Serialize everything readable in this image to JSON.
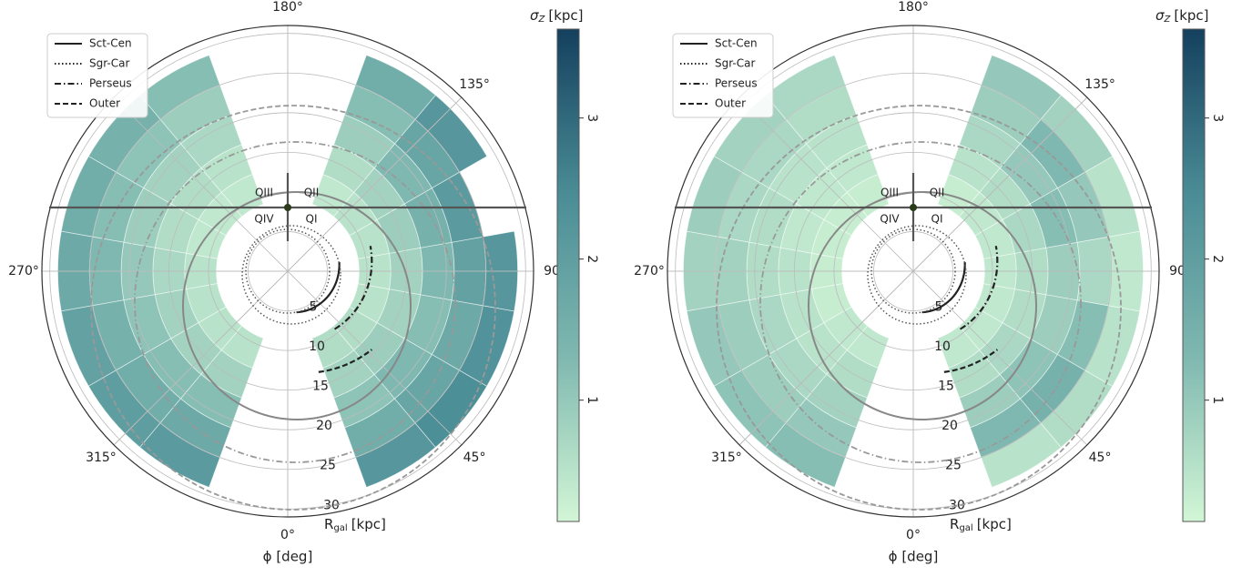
{
  "chart_data": [
    {
      "type": "polar_heatmap",
      "angle_label": "ϕ [deg]",
      "r_label": {
        "main": "R",
        "sub": "gal",
        "unit": "[kpc]"
      },
      "colorbar_label": {
        "main": "σ",
        "sub": "Z",
        "unit": "[kpc]"
      },
      "legend": [
        {
          "name": "Sct-Cen",
          "style": "solid"
        },
        {
          "name": "Sgr-Car",
          "style": "dotted"
        },
        {
          "name": "Perseus",
          "style": "dashdot"
        },
        {
          "name": "Outer",
          "style": "dashed"
        }
      ],
      "legend_loc": "upper left",
      "quadrants": [
        "QI",
        "QII",
        "QIII",
        "QIV"
      ],
      "rlim": [
        0,
        31
      ],
      "rticks": [
        5,
        10,
        15,
        20,
        25,
        30
      ],
      "angle_ticks": [
        {
          "value": 0,
          "label": "0°"
        },
        {
          "value": 45,
          "label": "45°"
        },
        90,
        {
          "value": 135,
          "label": "135°"
        },
        {
          "value": 180,
          "label": "180°"
        },
        {
          "value": 270,
          "label": "270°"
        },
        {
          "value": 315,
          "label": "315°"
        }
      ],
      "clim": [
        0.14,
        3.63
      ],
      "cticks": [
        1,
        2,
        3
      ],
      "colormap": [
        "#d2f6d6",
        "#7fb8b0",
        "#4a8c96",
        "#14405e"
      ],
      "phi_bins": [
        20,
        40,
        60,
        80,
        100,
        120,
        140,
        160,
        180,
        200,
        220,
        240,
        260,
        280,
        300,
        320,
        340
      ],
      "r_bins": [
        9,
        13,
        17,
        21,
        25,
        29
      ],
      "sigma": [
        [
          0.6,
          0.8,
          1.1,
          1.6,
          2.2
        ],
        [
          0.6,
          0.9,
          1.3,
          1.8,
          2.4
        ],
        [
          0.5,
          0.8,
          1.2,
          1.7,
          2.3
        ],
        [
          0.5,
          0.8,
          1.3,
          1.9,
          2.2
        ],
        [
          0.5,
          0.9,
          1.5,
          2.1,
          null
        ],
        [
          0.5,
          0.8,
          1.3,
          1.8,
          2.2
        ],
        [
          0.4,
          0.6,
          0.9,
          1.2,
          1.6
        ],
        [
          null,
          null,
          null,
          null,
          null
        ],
        [
          null,
          null,
          null,
          null,
          null
        ],
        [
          0.4,
          0.5,
          0.7,
          0.9,
          1.2
        ],
        [
          0.4,
          0.6,
          0.8,
          1.1,
          1.5
        ],
        [
          0.4,
          0.6,
          0.9,
          1.2,
          1.6
        ],
        [
          0.5,
          0.7,
          1.0,
          1.3,
          1.7
        ],
        [
          0.5,
          0.8,
          1.1,
          1.5,
          1.9
        ],
        [
          0.5,
          0.8,
          1.2,
          1.6,
          2.0
        ],
        [
          0.5,
          0.8,
          1.2,
          1.7,
          2.1
        ]
      ]
    },
    {
      "type": "polar_heatmap",
      "angle_label": "ϕ [deg]",
      "r_label": {
        "main": "R",
        "sub": "gal",
        "unit": "[kpc]"
      },
      "colorbar_label": {
        "main": "σ",
        "sub": "Z",
        "unit": "[kpc]"
      },
      "legend": [
        {
          "name": "Sct-Cen",
          "style": "solid"
        },
        {
          "name": "Sgr-Car",
          "style": "dotted"
        },
        {
          "name": "Perseus",
          "style": "dashdot"
        },
        {
          "name": "Outer",
          "style": "dashed"
        }
      ],
      "legend_loc": "upper left",
      "quadrants": [
        "QI",
        "QII",
        "QIII",
        "QIV"
      ],
      "rlim": [
        0,
        31
      ],
      "rticks": [
        5,
        10,
        15,
        20,
        25,
        30
      ],
      "angle_ticks": [
        {
          "value": 0,
          "label": "0°"
        },
        {
          "value": 45,
          "label": "45°"
        },
        90,
        {
          "value": 135,
          "label": "135°"
        },
        {
          "value": 180,
          "label": "180°"
        },
        {
          "value": 270,
          "label": "270°"
        },
        {
          "value": 315,
          "label": "315°"
        }
      ],
      "clim": [
        0.14,
        3.63
      ],
      "cticks": [
        1,
        2,
        3
      ],
      "colormap": [
        "#d2f6d6",
        "#7fb8b0",
        "#4a8c96",
        "#14405e"
      ],
      "phi_bins": [
        20,
        40,
        60,
        80,
        100,
        120,
        140,
        160,
        180,
        200,
        220,
        240,
        260,
        280,
        300,
        320,
        340
      ],
      "r_bins": [
        9,
        13,
        17,
        21,
        25,
        29
      ],
      "sigma": [
        [
          0.4,
          0.6,
          0.9,
          1.3,
          0.5
        ],
        [
          0.4,
          0.7,
          1.1,
          1.5,
          0.6
        ],
        [
          0.4,
          0.6,
          0.9,
          1.2,
          0.5
        ],
        [
          0.4,
          0.6,
          0.9,
          0.7,
          0.4
        ],
        [
          0.4,
          0.7,
          1.2,
          1.0,
          0.5
        ],
        [
          0.4,
          0.6,
          1.0,
          1.3,
          0.8
        ],
        [
          0.3,
          0.5,
          0.7,
          0.9,
          1.0
        ],
        [
          null,
          null,
          null,
          null,
          null
        ],
        [
          null,
          null,
          null,
          null,
          null
        ],
        [
          0.3,
          0.4,
          0.5,
          0.6,
          0.7
        ],
        [
          0.3,
          0.4,
          0.5,
          0.7,
          0.8
        ],
        [
          0.3,
          0.4,
          0.6,
          0.7,
          0.9
        ],
        [
          0.3,
          0.5,
          0.6,
          0.8,
          0.8
        ],
        [
          0.3,
          0.5,
          0.7,
          0.9,
          1.0
        ],
        [
          0.4,
          0.5,
          0.7,
          0.9,
          1.1
        ],
        [
          0.4,
          0.6,
          0.8,
          1.0,
          1.2
        ]
      ]
    }
  ]
}
